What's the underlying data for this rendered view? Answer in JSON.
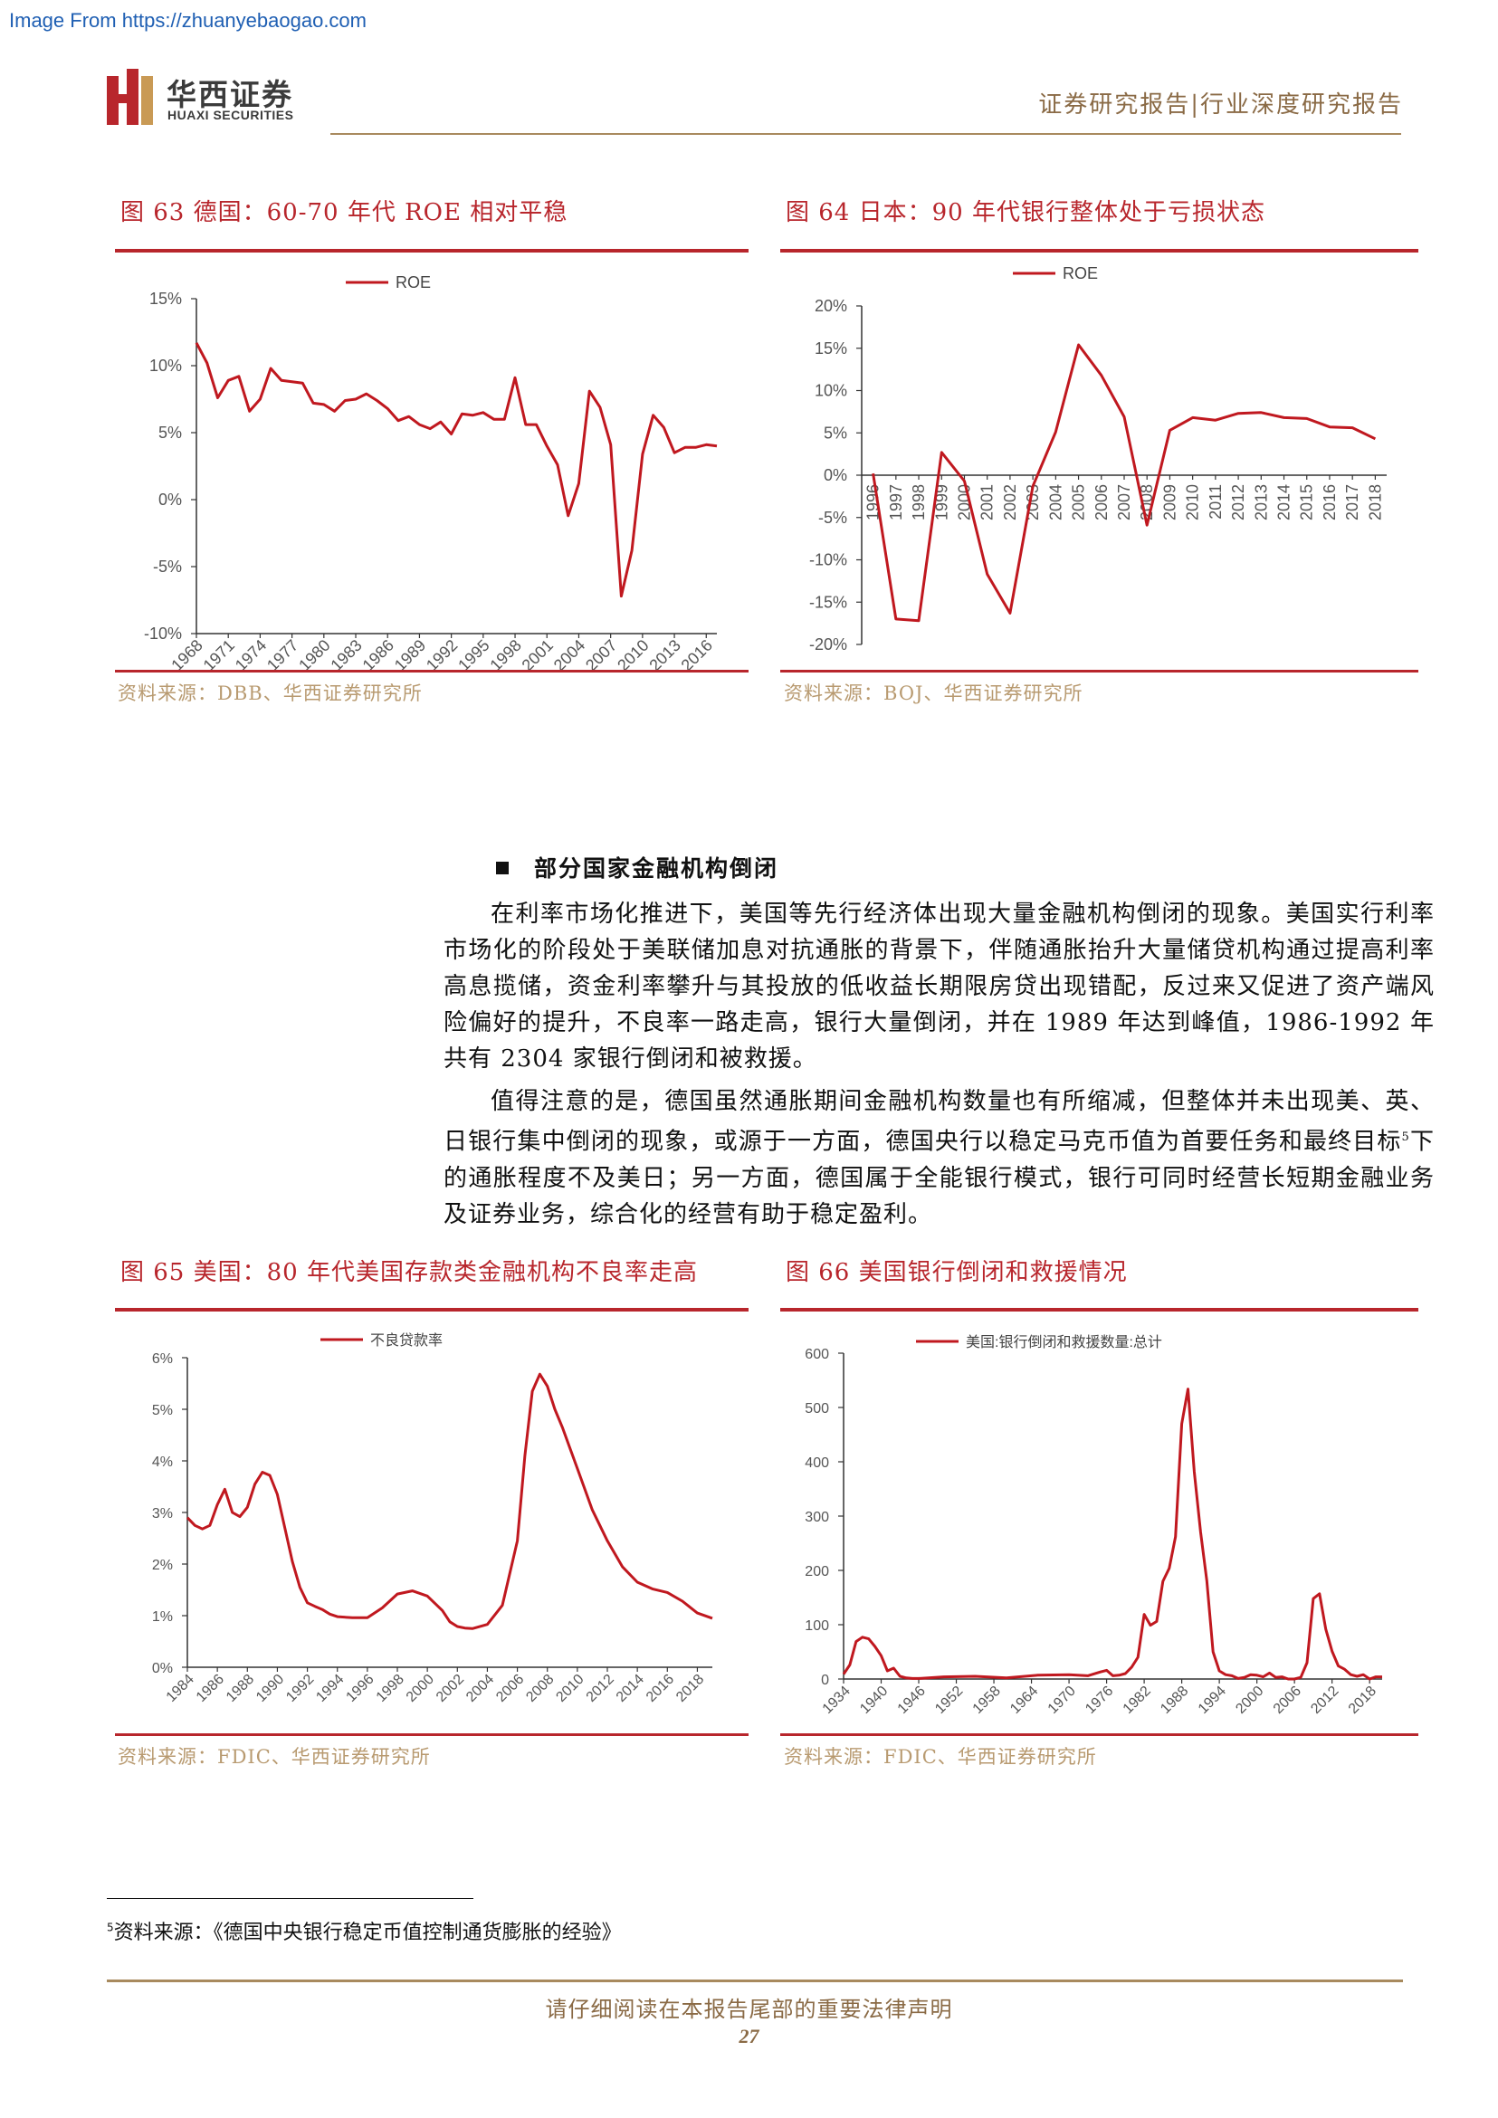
{
  "top_url": "Image From https://zhuanyebaogao.com",
  "header": {
    "logo_cn": "华西证券",
    "logo_en": "HUAXI SECURITIES",
    "right": "证券研究报告|行业深度研究报告"
  },
  "figures": [
    {
      "id": "fig63",
      "title": "图 63   德国：60-70 年代 ROE 相对平稳",
      "source": "资料来源：DBB、华西证券研究所"
    },
    {
      "id": "fig64",
      "title": "图 64   日本：90 年代银行整体处于亏损状态",
      "source": "资料来源：BOJ、华西证券研究所"
    },
    {
      "id": "fig65",
      "title": "图 65   美国：80 年代美国存款类金融机构不良率走高",
      "source": "资料来源：FDIC、华西证券研究所"
    },
    {
      "id": "fig66",
      "title": "图 66   美国银行倒闭和救援情况",
      "source": "资料来源：FDIC、华西证券研究所"
    }
  ],
  "section": {
    "heading": "部分国家金融机构倒闭",
    "p1": "在利率市场化推进下，美国等先行经济体出现大量金融机构倒闭的现象。美国实行利率市场化的阶段处于美联储加息对抗通胀的背景下，伴随通胀抬升大量储贷机构通过提高利率高息揽储，资金利率攀升与其投放的低收益长期限房贷出现错配，反过来又促进了资产端风险偏好的提升，不良率一路走高，银行大量倒闭，并在 1989 年达到峰值，1986-1992 年共有 2304 家银行倒闭和被救援。",
    "p2_a": "值得注意的是，德国虽然通胀期间金融机构数量也有所缩减，但整体并未出现美、英、日银行集中倒闭的现象，或源于一方面，德国央行以稳定马克币值为首要任务和最终目标",
    "p2_sup": "5",
    "p2_b": "下的通胀程度不及美日；另一方面，德国属于全能银行模式，银行可同时经营长短期金融业务及证券业务，综合化的经营有助于稳定盈利。"
  },
  "footnote": {
    "num": "5",
    "text": "资料来源：《德国中央银行稳定币值控制通货膨胀的经验》"
  },
  "footer": {
    "text": "请仔细阅读在本报告尾部的重要法律声明",
    "page": "27"
  },
  "colors": {
    "accent": "#b8262c",
    "gold": "#a88a5e",
    "source": "#b89a70",
    "line": "#c0181f"
  },
  "chart_data": [
    {
      "id": "fig63",
      "type": "line",
      "legend": [
        "ROE"
      ],
      "legend_position": "top",
      "x_tick_labels": [
        "1968",
        "1971",
        "1974",
        "1977",
        "1980",
        "1983",
        "1986",
        "1989",
        "1992",
        "1995",
        "1998",
        "2001",
        "2004",
        "2007",
        "2010",
        "2013",
        "2016"
      ],
      "y_tick_labels": [
        "15%",
        "10%",
        "5%",
        "0%",
        "-5%",
        "-10%"
      ],
      "ylim": [
        -10,
        15
      ],
      "series": [
        {
          "name": "ROE",
          "x": [
            1968,
            1969,
            1970,
            1971,
            1972,
            1973,
            1974,
            1975,
            1976,
            1977,
            1978,
            1979,
            1980,
            1981,
            1982,
            1983,
            1984,
            1985,
            1986,
            1987,
            1988,
            1989,
            1990,
            1991,
            1992,
            1993,
            1994,
            1995,
            1996,
            1997,
            1998,
            1999,
            2000,
            2001,
            2002,
            2003,
            2004,
            2005,
            2006,
            2007,
            2008,
            2009,
            2010,
            2011,
            2012,
            2013,
            2014,
            2015,
            2016,
            2017
          ],
          "y": [
            11.7,
            10.2,
            7.6,
            8.9,
            9.2,
            6.6,
            7.5,
            9.8,
            8.9,
            8.8,
            8.7,
            7.2,
            7.1,
            6.6,
            7.4,
            7.5,
            7.9,
            7.4,
            6.8,
            5.9,
            6.2,
            5.6,
            5.3,
            5.8,
            4.9,
            6.4,
            6.3,
            6.5,
            6.0,
            6.0,
            9.1,
            5.6,
            5.6,
            4.0,
            2.6,
            -1.2,
            1.2,
            8.1,
            6.9,
            4.1,
            -7.2,
            -3.8,
            3.4,
            6.3,
            5.4,
            3.5,
            3.9,
            3.9,
            4.1,
            4.0
          ]
        }
      ]
    },
    {
      "id": "fig64",
      "type": "line",
      "legend": [
        "ROE"
      ],
      "legend_position": "top",
      "x_tick_labels": [
        "1996",
        "1997",
        "1998",
        "1999",
        "2000",
        "2001",
        "2002",
        "2003",
        "2004",
        "2005",
        "2006",
        "2007",
        "2008",
        "2009",
        "2010",
        "2011",
        "2012",
        "2013",
        "2014",
        "2015",
        "2016",
        "2017",
        "2018"
      ],
      "y_tick_labels": [
        "20%",
        "15%",
        "10%",
        "5%",
        "0%",
        "-5%",
        "-10%",
        "-15%",
        "-20%"
      ],
      "ylim": [
        -20,
        20
      ],
      "series": [
        {
          "name": "ROE",
          "x": [
            1996,
            1997,
            1998,
            1999,
            2000,
            2001,
            2002,
            2003,
            2004,
            2005,
            2006,
            2007,
            2008,
            2009,
            2010,
            2011,
            2012,
            2013,
            2014,
            2015,
            2016,
            2017,
            2018
          ],
          "y": [
            0.2,
            -17.0,
            -17.2,
            2.7,
            -0.7,
            -11.7,
            -16.3,
            -1.3,
            5.1,
            15.4,
            11.8,
            6.9,
            -5.9,
            5.3,
            6.8,
            6.5,
            7.3,
            7.4,
            6.8,
            6.7,
            5.7,
            5.6,
            4.3
          ]
        }
      ]
    },
    {
      "id": "fig65",
      "type": "line",
      "legend": [
        "不良贷款率"
      ],
      "legend_position": "top",
      "x_tick_labels": [
        "1984",
        "1986",
        "1988",
        "1990",
        "1992",
        "1994",
        "1996",
        "1998",
        "2000",
        "2002",
        "2004",
        "2006",
        "2008",
        "2010",
        "2012",
        "2014",
        "2016",
        "2018"
      ],
      "y_tick_labels": [
        "6%",
        "5%",
        "4%",
        "3%",
        "2%",
        "1%",
        "0%"
      ],
      "ylim": [
        0,
        6
      ],
      "series": [
        {
          "name": "不良贷款率",
          "x": [
            1984,
            1984.5,
            1985,
            1985.5,
            1986,
            1986.5,
            1987,
            1987.5,
            1988,
            1988.5,
            1989,
            1989.5,
            1990,
            1990.5,
            1991,
            1991.5,
            1992,
            1992.5,
            1993,
            1993.5,
            1994,
            1995,
            1996,
            1997,
            1998,
            1999,
            2000,
            2001,
            2001.5,
            2002,
            2002.5,
            2003,
            2004,
            2005,
            2006,
            2006.5,
            2007,
            2007.5,
            2008,
            2008.5,
            2009,
            2009.5,
            2010,
            2011,
            2012,
            2013,
            2014,
            2015,
            2016,
            2017,
            2018,
            2019
          ],
          "y": [
            2.9,
            2.75,
            2.68,
            2.75,
            3.15,
            3.45,
            3.0,
            2.92,
            3.1,
            3.55,
            3.78,
            3.72,
            3.35,
            2.7,
            2.05,
            1.55,
            1.25,
            1.18,
            1.12,
            1.03,
            0.98,
            0.96,
            0.96,
            1.15,
            1.42,
            1.48,
            1.38,
            1.1,
            0.88,
            0.79,
            0.76,
            0.75,
            0.83,
            1.2,
            2.45,
            4.1,
            5.35,
            5.68,
            5.45,
            5.0,
            4.65,
            4.25,
            3.85,
            3.05,
            2.45,
            1.95,
            1.65,
            1.52,
            1.45,
            1.28,
            1.05,
            0.95
          ]
        }
      ]
    },
    {
      "id": "fig66",
      "type": "line",
      "legend": [
        "美国:银行倒闭和救援数量:总计"
      ],
      "legend_position": "top",
      "x_tick_labels": [
        "1934",
        "1940",
        "1946",
        "1952",
        "1958",
        "1964",
        "1970",
        "1976",
        "1982",
        "1988",
        "1994",
        "2000",
        "2006",
        "2012",
        "2018"
      ],
      "y_tick_labels": [
        "600",
        "500",
        "400",
        "300",
        "200",
        "100",
        "0"
      ],
      "ylim": [
        0,
        600
      ],
      "series": [
        {
          "name": "美国:银行倒闭和救援数量:总计",
          "x": [
            1934,
            1935,
            1936,
            1937,
            1938,
            1939,
            1940,
            1941,
            1942,
            1943,
            1944,
            1945,
            1946,
            1950,
            1955,
            1960,
            1965,
            1970,
            1973,
            1975,
            1976,
            1977,
            1978,
            1979,
            1980,
            1981,
            1982,
            1983,
            1984,
            1985,
            1986,
            1987,
            1988,
            1989,
            1990,
            1991,
            1992,
            1993,
            1994,
            1995,
            1996,
            1997,
            1998,
            1999,
            2000,
            2001,
            2002,
            2003,
            2004,
            2005,
            2006,
            2007,
            2008,
            2009,
            2010,
            2011,
            2012,
            2013,
            2014,
            2015,
            2016,
            2017,
            2018,
            2019,
            2020
          ],
          "y": [
            9,
            26,
            69,
            77,
            74,
            60,
            43,
            15,
            20,
            5,
            2,
            1,
            1,
            4,
            5,
            2,
            7,
            8,
            6,
            13,
            16,
            6,
            7,
            10,
            22,
            40,
            119,
            99,
            106,
            180,
            204,
            262,
            470,
            534,
            382,
            271,
            181,
            50,
            15,
            8,
            6,
            1,
            3,
            8,
            7,
            4,
            11,
            3,
            4,
            0,
            0,
            3,
            30,
            148,
            157,
            92,
            51,
            24,
            18,
            8,
            5,
            8,
            0,
            4,
            4
          ]
        }
      ]
    }
  ]
}
